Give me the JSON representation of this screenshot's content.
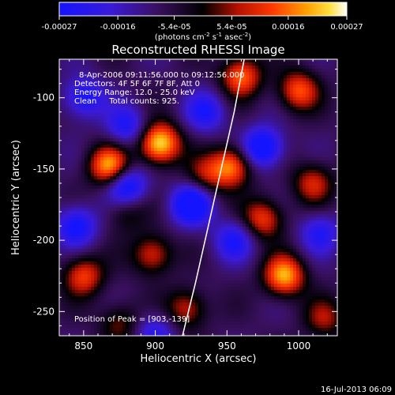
{
  "colorbar": {
    "ticks": [
      "-0.00027",
      "-0.00016",
      "-5.4e-05",
      "5.4e-05",
      "0.00016",
      "0.00027"
    ],
    "unit_prefix": "(photons cm",
    "unit_exp1": "-2",
    "unit_mid": " s",
    "unit_exp2": "-1",
    "unit_mid2": " asec",
    "unit_exp3": "-2",
    "unit_suffix": ")"
  },
  "chart_data": {
    "type": "heatmap",
    "title": "Reconstructed RHESSI Image",
    "xlabel": "Heliocentric X (arcsec)",
    "ylabel": "Heliocentric Y (arcsec)",
    "xlim": [
      833,
      1027
    ],
    "ylim": [
      -267,
      -73
    ],
    "x_ticks": [
      850,
      900,
      950,
      1000
    ],
    "y_ticks": [
      -250,
      -200,
      -150,
      -100
    ],
    "x_tick_labels": [
      "850",
      "900",
      "950",
      "1000"
    ],
    "y_tick_labels": [
      "-250",
      "-200",
      "-150",
      "-100"
    ],
    "color_range": [
      -0.00027,
      0.00027
    ],
    "colormap": "blue-purple-black-red-yellow-white",
    "peak_position": [
      903,
      -139
    ],
    "limb_curve": [
      [
        919,
        -267
      ],
      [
        928,
        -230
      ],
      [
        937,
        -190
      ],
      [
        946,
        -150
      ],
      [
        955,
        -110
      ],
      [
        962,
        -73
      ]
    ],
    "annotations": [
      "8-Apr-2006 09:11:56.000 to 09:12:56.000",
      "Detectors: 4F 5F 6F 7F 8F, Att 0",
      "Energy Range: 12.0 - 25.0 keV",
      "Clean     Total counts: 925.",
      "Position of Peak = [903,-139]"
    ],
    "sources": [
      {
        "x": 903,
        "y": -132,
        "amp": 1.0
      },
      {
        "x": 868,
        "y": -148,
        "amp": 0.85
      },
      {
        "x": 953,
        "y": -148,
        "amp": 0.75
      },
      {
        "x": 990,
        "y": -225,
        "amp": 0.85
      },
      {
        "x": 1000,
        "y": -95,
        "amp": 0.65
      },
      {
        "x": 960,
        "y": -85,
        "amp": 0.7
      },
      {
        "x": 975,
        "y": -185,
        "amp": 0.6
      },
      {
        "x": 898,
        "y": -210,
        "amp": 0.55
      },
      {
        "x": 850,
        "y": -225,
        "amp": 0.6
      },
      {
        "x": 922,
        "y": -248,
        "amp": 0.5
      },
      {
        "x": 1010,
        "y": -160,
        "amp": 0.5
      },
      {
        "x": 1018,
        "y": -255,
        "amp": 0.4
      },
      {
        "x": 935,
        "y": -155,
        "amp": 0.4
      },
      {
        "x": 880,
        "y": -180,
        "amp": 0.3
      },
      {
        "x": 875,
        "y": -258,
        "amp": 0.35
      },
      {
        "x": 880,
        "y": -162,
        "amp": -0.7
      },
      {
        "x": 925,
        "y": -175,
        "amp": -0.8
      },
      {
        "x": 975,
        "y": -135,
        "amp": -0.75
      },
      {
        "x": 850,
        "y": -100,
        "amp": -0.55
      },
      {
        "x": 955,
        "y": -200,
        "amp": -0.5
      },
      {
        "x": 935,
        "y": -110,
        "amp": -0.5
      },
      {
        "x": 880,
        "y": -120,
        "amp": -0.5
      },
      {
        "x": 1015,
        "y": -195,
        "amp": -0.45
      },
      {
        "x": 845,
        "y": -190,
        "amp": -0.6
      },
      {
        "x": 900,
        "y": -265,
        "amp": -0.4
      }
    ]
  },
  "footer": {
    "timestamp": "16-Jul-2013 06:09"
  }
}
